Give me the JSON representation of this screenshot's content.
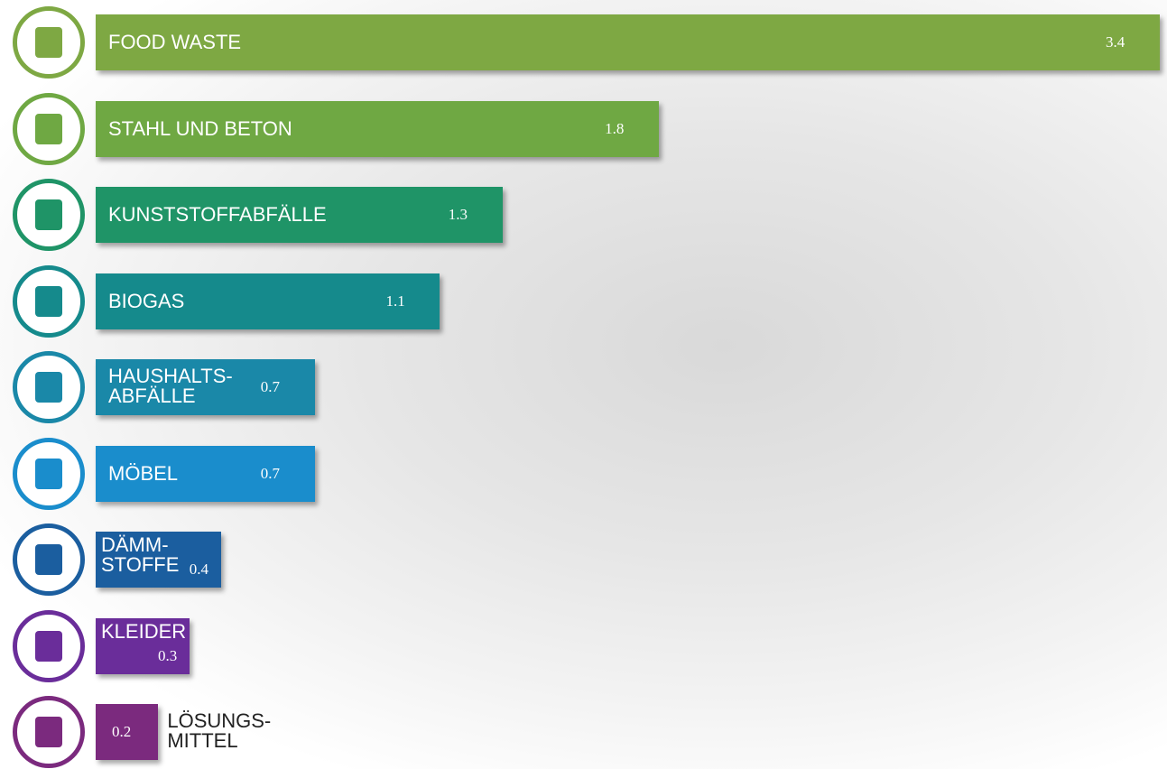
{
  "chart_data": {
    "type": "bar",
    "categories": [
      "FOOD WASTE",
      "STAHL UND BETON",
      "KUNSTSTOFFABFÄLLE",
      "BIOGAS",
      "HAUSHALTS-\nABFÄLLE",
      "MÖBEL",
      "DÄMM-\nSTOFFE",
      "KLEIDER",
      "LÖSUNGS-\nMITTEL"
    ],
    "values": [
      3.4,
      1.8,
      1.3,
      1.1,
      0.7,
      0.7,
      0.4,
      0.3,
      0.2
    ],
    "colors": [
      "#7ea843",
      "#6fa843",
      "#1f9467",
      "#158a8c",
      "#1a88a8",
      "#1a8dcc",
      "#1b5e9f",
      "#6a2d9a",
      "#7b2a7e"
    ]
  }
}
